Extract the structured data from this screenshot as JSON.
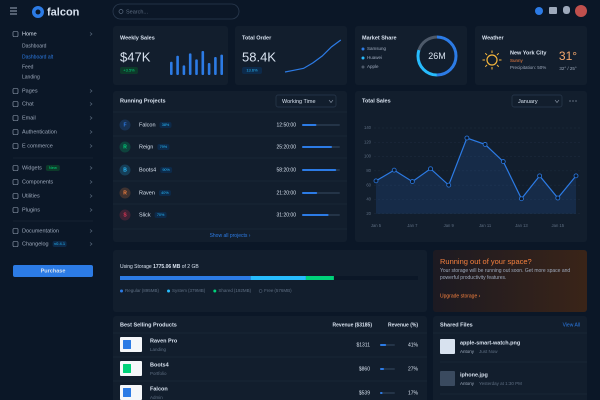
{
  "topbar": {
    "logo": "falcon",
    "search_placeholder": "Search..."
  },
  "sidebar": {
    "nav": [
      {
        "label": "Home",
        "children": [
          "Dashboard",
          "Dashboard alt",
          "Feed",
          "Landing"
        ]
      },
      {
        "label": "Pages"
      },
      {
        "label": "Chat"
      },
      {
        "label": "Email"
      },
      {
        "label": "Authentication"
      },
      {
        "label": "E commerce"
      },
      {
        "label": "Widgets",
        "badge": "New"
      },
      {
        "label": "Components"
      },
      {
        "label": "Utilities"
      },
      {
        "label": "Plugins"
      },
      {
        "label": "Documentation"
      },
      {
        "label": "Changelog",
        "badge": "v0.4.1"
      }
    ],
    "button": "Purchase"
  },
  "weekly_sales": {
    "title": "Weekly Sales",
    "value": "$47K",
    "change": "+3.5%",
    "bars": [
      55,
      80,
      40,
      90,
      65,
      100,
      50,
      75,
      85
    ]
  },
  "total_order": {
    "title": "Total Order",
    "value": "58.4K",
    "change": "13.6%",
    "trend": [
      20,
      24,
      28,
      40,
      55,
      75,
      90
    ]
  },
  "market_share": {
    "title": "Market Share",
    "total": "26M",
    "series": [
      {
        "name": "Samsung",
        "value": 50,
        "color": "#2c7be5"
      },
      {
        "name": "Huawei",
        "value": 30,
        "color": "#27bcfd"
      },
      {
        "name": "Apple",
        "value": 20,
        "color": "#4d5969"
      }
    ]
  },
  "weather": {
    "title": "Weather",
    "city": "New York City",
    "condition": "Sunny",
    "precipitation": "Precipitation: 50%",
    "temp": "31°",
    "range": "32° / 25°"
  },
  "running_projects": {
    "title": "Running Projects",
    "filter": "Working Time",
    "projects": [
      {
        "initial": "F",
        "name": "Falcon",
        "percent": 38,
        "percent_label": "38%",
        "time": "12:50:00",
        "color": "#2c7be5"
      },
      {
        "initial": "R",
        "name": "Reign",
        "percent": 79,
        "percent_label": "79%",
        "time": "25:20:00",
        "color": "#00d27a"
      },
      {
        "initial": "B",
        "name": "Boots4",
        "percent": 90,
        "percent_label": "90%",
        "time": "58:20:00",
        "color": "#27bcfd"
      },
      {
        "initial": "R",
        "name": "Raven",
        "percent": 40,
        "percent_label": "40%",
        "time": "21:20:00",
        "color": "#f5803e"
      },
      {
        "initial": "S",
        "name": "Slick",
        "percent": 70,
        "percent_label": "70%",
        "time": "31:20:00",
        "color": "#e63757"
      }
    ],
    "footer": "Show all projects ›"
  },
  "total_sales": {
    "title": "Total Sales",
    "filter": "January",
    "type": "line",
    "categories": [
      "Jan 5",
      null,
      "Jan 7",
      null,
      "Jan 9",
      null,
      "Jan 11",
      null,
      "Jan 13",
      null,
      "Jan 15",
      null
    ],
    "values": [
      66,
      81,
      65,
      83,
      60,
      126,
      117,
      93,
      41,
      73,
      42,
      73
    ],
    "ylim": [
      0,
      140
    ],
    "yticks": [
      20,
      40,
      60,
      80,
      100,
      120,
      140
    ],
    "color": "#2c7be5",
    "grid": true
  },
  "storage": {
    "prefix": "Using Storage ",
    "used": "1775.06 MB",
    "suffix": " of 2 GB",
    "segments": [
      {
        "name": "Regular",
        "value": 895,
        "label": "(895MB)",
        "color": "#2c7be5"
      },
      {
        "name": "System",
        "value": 379,
        "label": "(379MB)",
        "color": "#27bcfd"
      },
      {
        "name": "Shared",
        "value": 192,
        "label": "(192MB)",
        "color": "#00d27a"
      },
      {
        "name": "Free",
        "value": 576,
        "label": "(576MB)",
        "color": "#0b1727"
      }
    ]
  },
  "promo": {
    "title": "Running out of your space?",
    "text": "Your storage will be running out soon. Get more space and powerful productivity features.",
    "link": "Upgrade storage ›"
  },
  "best_selling": {
    "title": "Best Selling Products",
    "revenue_header": "Revenue ($3185)",
    "percent_header": "Revenue (%)",
    "products": [
      {
        "name": "Raven Pro",
        "category": "Landing",
        "revenue": "$1311",
        "percent": 41,
        "percent_label": "41%"
      },
      {
        "name": "Boots4",
        "category": "Portfolio",
        "revenue": "$860",
        "percent": 27,
        "percent_label": "27%"
      },
      {
        "name": "Falcon",
        "category": "Admin",
        "revenue": "$539",
        "percent": 17,
        "percent_label": "17%"
      }
    ]
  },
  "shared_files": {
    "title": "Shared Files",
    "link": "View All",
    "files": [
      {
        "name": "apple-smart-watch.png",
        "user": "Antony",
        "time": "Just Now"
      },
      {
        "name": "iphone.jpg",
        "user": "Antony",
        "time": "Yesterday at 1:30 PM"
      }
    ]
  }
}
